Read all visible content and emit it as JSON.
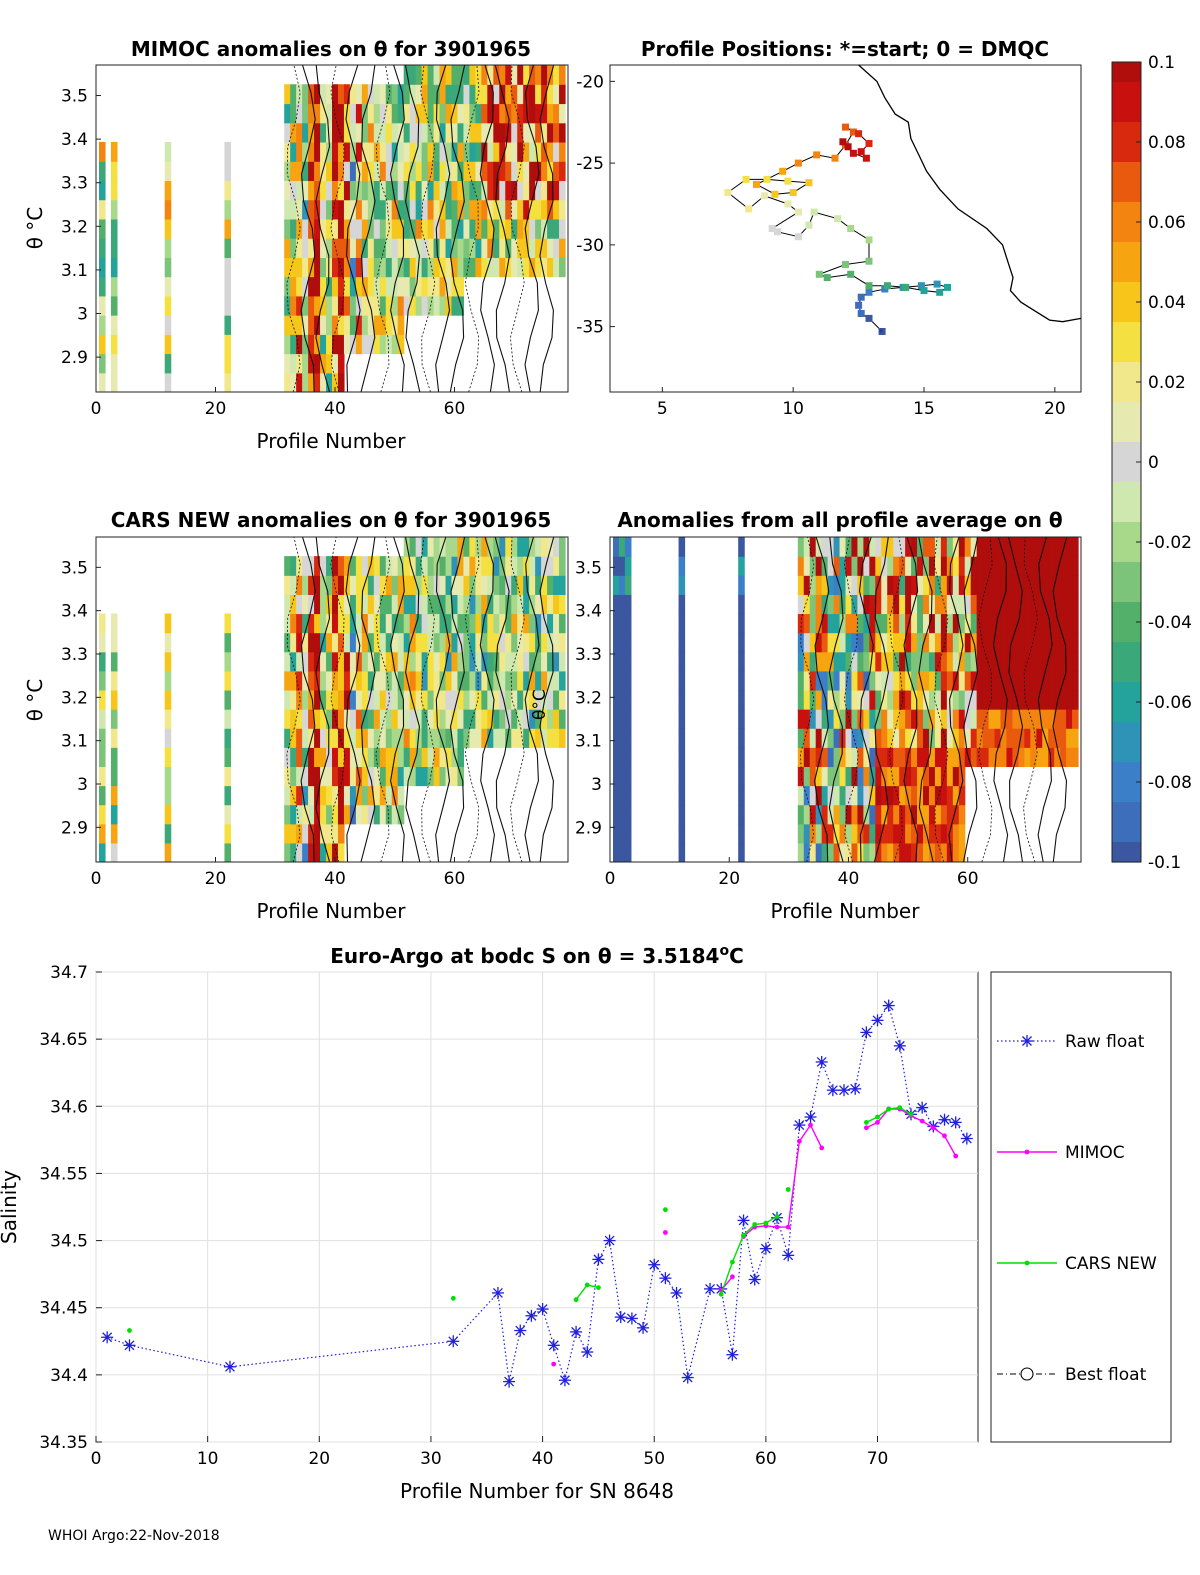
{
  "footer": "WHOI Argo:22-Nov-2018",
  "colors": {
    "raw": "#1f1fe0",
    "mimoc": "#ff00ff",
    "cars": "#00e000",
    "best": "#000000"
  },
  "colormap": [
    {
      "v": -0.1,
      "c": "#3b57a0"
    },
    {
      "v": -0.09,
      "c": "#3d6ebc"
    },
    {
      "v": -0.08,
      "c": "#3b7fc8"
    },
    {
      "v": -0.07,
      "c": "#2f93b8"
    },
    {
      "v": -0.06,
      "c": "#24a39c"
    },
    {
      "v": -0.05,
      "c": "#3aa878"
    },
    {
      "v": -0.04,
      "c": "#52b06a"
    },
    {
      "v": -0.03,
      "c": "#7cc47a"
    },
    {
      "v": -0.02,
      "c": "#a8d88a"
    },
    {
      "v": -0.01,
      "c": "#cfe8b0"
    },
    {
      "v": 0,
      "c": "#d6d6d6"
    },
    {
      "v": 0.01,
      "c": "#e6eab0"
    },
    {
      "v": 0.02,
      "c": "#f0e88a"
    },
    {
      "v": 0.03,
      "c": "#f4e040"
    },
    {
      "v": 0.04,
      "c": "#f6c61a"
    },
    {
      "v": 0.05,
      "c": "#f6a410"
    },
    {
      "v": 0.06,
      "c": "#f3840f"
    },
    {
      "v": 0.07,
      "c": "#ea5a0e"
    },
    {
      "v": 0.08,
      "c": "#d8280e"
    },
    {
      "v": 0.09,
      "c": "#c8100f"
    },
    {
      "v": 0.1,
      "c": "#b00d0d"
    }
  ],
  "colorbar": {
    "ticks": [
      "0.1",
      "0.08",
      "0.06",
      "0.04",
      "0.02",
      "0",
      "-0.02",
      "-0.04",
      "-0.06",
      "-0.08",
      "-0.1"
    ]
  },
  "chart_data": [
    {
      "id": "mimoc",
      "type": "heatmap",
      "title": "MIMOC anomalies on θ  for 3901965",
      "xlabel": "Profile Number",
      "ylabel": "θ °C",
      "xlim": [
        0,
        79
      ],
      "ylim": [
        2.82,
        3.57
      ],
      "xticks": [
        "0",
        "20",
        "40",
        "60"
      ],
      "yticks": [
        "3.5",
        "3.4",
        "3.3",
        "3.2",
        "3.1",
        "3",
        "2.9"
      ]
    },
    {
      "id": "positions",
      "type": "scatter",
      "title": "Profile Positions: *=start; 0 = DMQC",
      "xlim": [
        3,
        21
      ],
      "ylim": [
        -39,
        -19
      ],
      "xticks": [
        "5",
        "10",
        "15",
        "20"
      ],
      "yticks": [
        "-20",
        "-25",
        "-30",
        "-35"
      ],
      "track": [
        [
          13.4,
          -35.3
        ],
        [
          12.9,
          -34.5
        ],
        [
          12.6,
          -34.2
        ],
        [
          12.5,
          -33.7
        ],
        [
          12.6,
          -33.2
        ],
        [
          12.9,
          -32.9
        ],
        [
          13.5,
          -32.7
        ],
        [
          14.2,
          -32.6
        ],
        [
          14.9,
          -32.5
        ],
        [
          15.5,
          -32.4
        ],
        [
          15.9,
          -32.6
        ],
        [
          15.6,
          -32.9
        ],
        [
          15.0,
          -32.8
        ],
        [
          14.3,
          -32.6
        ],
        [
          13.6,
          -32.5
        ],
        [
          12.9,
          -32.5
        ],
        [
          12.2,
          -31.8
        ],
        [
          11.3,
          -32.0
        ],
        [
          11.0,
          -31.8
        ],
        [
          12.0,
          -31.2
        ],
        [
          12.9,
          -31.0
        ],
        [
          12.9,
          -29.7
        ],
        [
          12.2,
          -29.0
        ],
        [
          11.7,
          -28.4
        ],
        [
          10.8,
          -28.0
        ],
        [
          10.6,
          -28.8
        ],
        [
          10.2,
          -29.5
        ],
        [
          9.4,
          -29.2
        ],
        [
          9.2,
          -29.0
        ],
        [
          10.2,
          -28.0
        ],
        [
          9.8,
          -27.5
        ],
        [
          8.9,
          -27.0
        ],
        [
          8.3,
          -27.8
        ],
        [
          7.5,
          -26.8
        ],
        [
          8.2,
          -26.0
        ],
        [
          9.0,
          -26.0
        ],
        [
          9.8,
          -26.1
        ],
        [
          10.6,
          -26.2
        ],
        [
          10.0,
          -26.8
        ],
        [
          9.3,
          -26.9
        ],
        [
          8.6,
          -26.3
        ],
        [
          9.6,
          -25.5
        ],
        [
          10.2,
          -25.0
        ],
        [
          10.9,
          -24.5
        ],
        [
          11.6,
          -24.7
        ],
        [
          12.0,
          -23.9
        ],
        [
          12.3,
          -23.1
        ],
        [
          12.0,
          -22.8
        ],
        [
          12.5,
          -23.2
        ],
        [
          12.9,
          -23.8
        ],
        [
          12.6,
          -24.3
        ],
        [
          12.8,
          -24.7
        ],
        [
          12.3,
          -24.4
        ],
        [
          12.1,
          -24.0
        ],
        [
          11.9,
          -23.7
        ]
      ],
      "coast": [
        [
          11.7,
          -17.0
        ],
        [
          11.9,
          -18.0
        ],
        [
          12.5,
          -19.0
        ],
        [
          13.2,
          -20.0
        ],
        [
          13.5,
          -21.0
        ],
        [
          13.9,
          -22.0
        ],
        [
          14.4,
          -22.5
        ],
        [
          14.5,
          -23.5
        ],
        [
          14.8,
          -24.5
        ],
        [
          15.1,
          -25.5
        ],
        [
          15.6,
          -26.6
        ],
        [
          16.3,
          -27.8
        ],
        [
          17.4,
          -29.0
        ],
        [
          18.0,
          -30.0
        ],
        [
          18.2,
          -31.0
        ],
        [
          18.4,
          -32.0
        ],
        [
          18.3,
          -32.8
        ],
        [
          18.7,
          -33.5
        ],
        [
          19.2,
          -34.0
        ],
        [
          19.8,
          -34.6
        ],
        [
          20.3,
          -34.7
        ],
        [
          21.0,
          -34.5
        ]
      ]
    },
    {
      "id": "cars",
      "type": "heatmap",
      "title": "CARS NEW anomalies on θ for 3901965",
      "xlabel": "Profile Number",
      "ylabel": "θ °C",
      "xlim": [
        0,
        79
      ],
      "ylim": [
        2.82,
        3.57
      ],
      "xticks": [
        "0",
        "20",
        "40",
        "60"
      ],
      "yticks": [
        "3.5",
        "3.4",
        "3.3",
        "3.2",
        "3.1",
        "3",
        "2.9"
      ],
      "annotation": "θ°C"
    },
    {
      "id": "avg",
      "type": "heatmap",
      "title": "Anomalies from all profile average on θ",
      "xlabel": "Profile Number",
      "xlim": [
        0,
        79
      ],
      "ylim": [
        2.82,
        3.57
      ],
      "xticks": [
        "0",
        "20",
        "40",
        "60"
      ],
      "yticks": [
        "3.5",
        "3.4",
        "3.3",
        "3.2",
        "3.1",
        "3",
        "2.9"
      ]
    },
    {
      "id": "salinity",
      "type": "line",
      "title_prefix": "Euro-Argo at bodc S on θ = 3.5184",
      "title_sup": "o",
      "title_suffix": "C",
      "xlabel": "Profile Number for SN 8648",
      "ylabel": "Salinity",
      "xlim": [
        0,
        79
      ],
      "ylim": [
        34.35,
        34.7
      ],
      "xticks": [
        "0",
        "10",
        "20",
        "30",
        "40",
        "50",
        "60",
        "70"
      ],
      "yticks": [
        "34.7",
        "34.65",
        "34.6",
        "34.55",
        "34.5",
        "34.45",
        "34.4",
        "34.35"
      ],
      "grid": true,
      "legend": "right",
      "series": [
        {
          "name": "Raw float",
          "x": [
            1,
            3,
            12,
            32,
            36,
            37,
            38,
            39,
            40,
            41,
            42,
            43,
            44,
            45,
            46,
            47,
            48,
            49,
            50,
            51,
            52,
            53,
            55,
            56,
            57,
            58,
            59,
            60,
            61,
            62,
            63,
            64,
            65,
            66,
            67,
            68,
            69,
            70,
            71,
            72,
            73,
            74,
            75,
            76,
            77,
            78
          ],
          "y": [
            34.428,
            34.422,
            34.406,
            34.425,
            34.461,
            34.395,
            34.433,
            34.444,
            34.449,
            34.422,
            34.396,
            34.432,
            34.417,
            34.486,
            34.5,
            34.443,
            34.442,
            34.435,
            34.482,
            34.472,
            34.461,
            34.398,
            34.464,
            34.464,
            34.415,
            34.515,
            34.471,
            34.494,
            34.517,
            34.489,
            34.586,
            34.592,
            34.633,
            34.612,
            34.612,
            34.613,
            34.655,
            34.664,
            34.675,
            34.645,
            34.594,
            34.599,
            34.585,
            34.59,
            34.588,
            34.576
          ]
        },
        {
          "name": "MIMOC",
          "segments": [
            {
              "x": [
                41
              ],
              "y": [
                34.408
              ]
            },
            {
              "x": [
                51
              ],
              "y": [
                34.506
              ]
            },
            {
              "x": [
                56,
                57
              ],
              "y": [
                34.463,
                34.473
              ]
            },
            {
              "x": [
                58,
                59,
                60,
                61,
                62,
                63,
                64,
                65
              ],
              "y": [
                34.503,
                34.51,
                34.511,
                34.51,
                34.51,
                34.574,
                34.586,
                34.569
              ]
            },
            {
              "x": [
                69,
                70,
                71,
                72,
                73,
                74,
                75,
                76,
                77
              ],
              "y": [
                34.584,
                34.588,
                34.598,
                34.598,
                34.593,
                34.589,
                34.584,
                34.578,
                34.563
              ]
            }
          ]
        },
        {
          "name": "CARS NEW",
          "segments": [
            {
              "x": [
                3
              ],
              "y": [
                34.433
              ]
            },
            {
              "x": [
                32
              ],
              "y": [
                34.457
              ]
            },
            {
              "x": [
                43,
                44,
                45
              ],
              "y": [
                34.456,
                34.467,
                34.465
              ]
            },
            {
              "x": [
                51
              ],
              "y": [
                34.523
              ]
            },
            {
              "x": [
                56,
                57,
                58,
                59,
                60,
                61
              ],
              "y": [
                34.46,
                34.484,
                34.504,
                34.512,
                34.513,
                34.518
              ]
            },
            {
              "x": [
                62
              ],
              "y": [
                34.538
              ]
            },
            {
              "x": [
                69,
                70,
                71,
                72,
                73
              ],
              "y": [
                34.588,
                34.592,
                34.598,
                34.599,
                34.594
              ]
            }
          ]
        },
        {
          "name": "Best float",
          "x": [],
          "y": []
        }
      ]
    }
  ]
}
